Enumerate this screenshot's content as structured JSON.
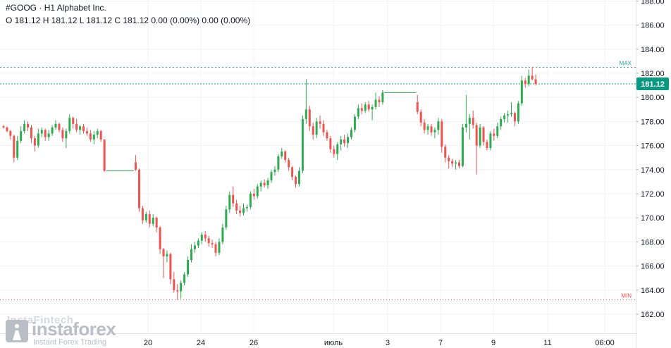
{
  "header": {
    "symbol": "#GOOG",
    "separator": "·",
    "timeframe": "H1",
    "company": "Alphabet Inc.",
    "ohlc_text": "O 181.12 H 181.12 L 181.12 C 181.12 0.00 (0.00%) 0.00 (0.00%)"
  },
  "watermark": {
    "faint_text": "InstaFintech",
    "brand": "instaforex",
    "tagline": "Instant Forex Trading"
  },
  "colors": {
    "up": "#26a69a",
    "up_candle": "#2eaa50",
    "down": "#ef5350",
    "max_line": "#26a69a",
    "min_line": "#ef5350",
    "price_line": "#089981",
    "grid": "#f0f3fa",
    "axis_text": "#131722"
  },
  "chart_data": {
    "type": "candlestick",
    "title": "#GOOG · H1 Alphabet Inc.",
    "y_axis": {
      "range": [
        161.0,
        188.5
      ],
      "ticks": [
        188.0,
        186.0,
        184.0,
        182.0,
        180.0,
        178.0,
        176.0,
        174.0,
        172.0,
        170.0,
        168.0,
        166.0,
        164.0,
        162.0
      ],
      "tick_labels": [
        "188.00",
        "186.00",
        "184.00",
        "182.00",
        "180.00",
        "178.00",
        "176.00",
        "174.00",
        "172.00",
        "170.00",
        "168.00",
        "166.00",
        "164.00",
        "162.00"
      ]
    },
    "x_axis": {
      "tick_labels": [
        "20",
        "24",
        "26",
        "июль",
        "3",
        "7",
        "9",
        "11",
        "06:00"
      ]
    },
    "current_price": 181.12,
    "current_price_label": "181.12",
    "max_level": 182.5,
    "max_label": "MAX",
    "min_level": 163.2,
    "min_label": "MIN",
    "grid": true,
    "candles": [
      [
        177.6,
        177.7,
        177.4,
        177.5
      ],
      [
        177.5,
        177.6,
        177.1,
        177.2
      ],
      [
        177.2,
        177.3,
        176.5,
        176.8
      ],
      [
        176.8,
        176.9,
        174.6,
        175.0
      ],
      [
        175.0,
        176.8,
        174.8,
        176.4
      ],
      [
        176.4,
        177.6,
        176.2,
        177.2
      ],
      [
        177.2,
        178.1,
        177.0,
        177.8
      ],
      [
        177.8,
        178.0,
        177.2,
        177.5
      ],
      [
        177.5,
        177.7,
        176.2,
        176.6
      ],
      [
        176.6,
        176.8,
        175.5,
        176.0
      ],
      [
        176.0,
        177.4,
        175.8,
        177.0
      ],
      [
        177.0,
        177.5,
        176.7,
        177.3
      ],
      [
        177.3,
        177.4,
        176.4,
        176.7
      ],
      [
        176.7,
        177.3,
        176.4,
        177.0
      ],
      [
        177.0,
        177.7,
        176.8,
        177.5
      ],
      [
        177.5,
        178.1,
        177.3,
        177.8
      ],
      [
        177.8,
        177.9,
        177.1,
        177.3
      ],
      [
        177.3,
        177.5,
        176.3,
        176.6
      ],
      [
        176.6,
        177.4,
        175.8,
        177.2
      ],
      [
        177.2,
        178.6,
        177.0,
        178.3
      ],
      [
        178.3,
        178.4,
        177.4,
        177.8
      ],
      [
        177.8,
        178.2,
        177.1,
        177.3
      ],
      [
        177.3,
        177.7,
        176.9,
        177.6
      ],
      [
        177.6,
        177.8,
        177.0,
        177.2
      ],
      [
        177.2,
        177.5,
        176.8,
        177.0
      ],
      [
        177.0,
        177.3,
        176.3,
        176.5
      ],
      [
        176.5,
        177.2,
        176.1,
        176.9
      ],
      [
        176.9,
        177.4,
        176.6,
        177.2
      ],
      [
        177.2,
        177.3,
        176.3,
        176.5
      ],
      [
        176.5,
        176.5,
        173.8,
        173.9
      ],
      [
        173.9,
        173.9,
        173.9,
        173.9
      ],
      [
        173.9,
        173.9,
        173.9,
        173.9
      ],
      [
        173.9,
        173.9,
        173.9,
        173.9
      ],
      [
        173.9,
        173.9,
        173.9,
        173.9
      ],
      [
        173.9,
        173.9,
        173.9,
        173.9
      ],
      [
        173.9,
        173.9,
        173.9,
        173.9
      ],
      [
        173.9,
        173.9,
        173.9,
        173.9
      ],
      [
        173.9,
        173.9,
        173.9,
        173.9
      ],
      [
        174.6,
        175.2,
        173.9,
        174.0
      ],
      [
        174.0,
        174.1,
        170.5,
        170.8
      ],
      [
        170.8,
        171.0,
        169.5,
        169.8
      ],
      [
        169.8,
        170.5,
        169.6,
        170.3
      ],
      [
        170.3,
        170.6,
        169.2,
        169.5
      ],
      [
        169.5,
        170.3,
        169.3,
        170.0
      ],
      [
        170.0,
        170.1,
        168.8,
        169.2
      ],
      [
        169.2,
        169.3,
        167.0,
        167.4
      ],
      [
        167.4,
        167.5,
        165.0,
        166.8
      ],
      [
        166.8,
        167.3,
        166.3,
        167.0
      ],
      [
        167.0,
        167.1,
        164.5,
        164.9
      ],
      [
        164.9,
        165.5,
        163.8,
        164.0
      ],
      [
        164.0,
        164.5,
        163.2,
        163.9
      ],
      [
        163.9,
        164.8,
        163.3,
        164.6
      ],
      [
        164.6,
        165.5,
        164.4,
        165.3
      ],
      [
        165.3,
        166.8,
        165.1,
        166.5
      ],
      [
        166.5,
        167.8,
        166.3,
        167.4
      ],
      [
        167.4,
        168.0,
        167.1,
        167.7
      ],
      [
        167.7,
        168.3,
        167.5,
        168.1
      ],
      [
        168.1,
        168.8,
        167.8,
        168.6
      ],
      [
        168.6,
        168.9,
        168.0,
        168.3
      ],
      [
        168.3,
        168.5,
        167.6,
        167.9
      ],
      [
        167.9,
        168.2,
        167.5,
        167.8
      ],
      [
        167.8,
        168.0,
        166.8,
        167.1
      ],
      [
        167.1,
        168.3,
        166.9,
        168.0
      ],
      [
        168.0,
        169.5,
        167.8,
        169.2
      ],
      [
        169.2,
        171.0,
        169.0,
        170.7
      ],
      [
        170.7,
        172.2,
        170.4,
        171.9
      ],
      [
        171.9,
        172.6,
        170.9,
        171.2
      ],
      [
        171.2,
        171.5,
        170.3,
        170.6
      ],
      [
        170.6,
        171.0,
        170.1,
        170.4
      ],
      [
        170.4,
        171.2,
        170.2,
        170.8
      ],
      [
        170.8,
        171.1,
        170.5,
        170.9
      ],
      [
        170.9,
        172.2,
        170.7,
        172.0
      ],
      [
        172.0,
        172.4,
        171.5,
        171.8
      ],
      [
        171.8,
        172.8,
        171.6,
        172.6
      ],
      [
        172.6,
        173.1,
        172.2,
        172.9
      ],
      [
        172.9,
        173.2,
        172.5,
        172.7
      ],
      [
        172.7,
        173.3,
        172.4,
        173.1
      ],
      [
        173.1,
        174.0,
        172.9,
        173.8
      ],
      [
        173.8,
        174.3,
        173.5,
        174.0
      ],
      [
        174.0,
        175.3,
        173.8,
        175.1
      ],
      [
        175.1,
        175.8,
        174.9,
        175.5
      ],
      [
        175.5,
        175.6,
        174.6,
        174.8
      ],
      [
        174.8,
        175.0,
        173.9,
        174.2
      ],
      [
        174.2,
        174.3,
        173.1,
        173.4
      ],
      [
        173.4,
        173.5,
        172.5,
        172.8
      ],
      [
        172.8,
        174.2,
        172.6,
        173.9
      ],
      [
        173.9,
        178.5,
        173.7,
        178.2
      ],
      [
        178.2,
        181.5,
        177.8,
        179.0
      ],
      [
        179.0,
        179.3,
        177.2,
        177.6
      ],
      [
        177.6,
        177.9,
        176.5,
        176.9
      ],
      [
        176.9,
        178.3,
        176.6,
        178.0
      ],
      [
        178.0,
        178.5,
        177.4,
        177.8
      ],
      [
        177.8,
        178.1,
        176.8,
        177.1
      ],
      [
        177.1,
        177.3,
        176.4,
        176.6
      ],
      [
        176.6,
        176.8,
        175.4,
        175.7
      ],
      [
        175.7,
        176.0,
        175.0,
        175.3
      ],
      [
        175.3,
        176.3,
        174.8,
        176.1
      ],
      [
        176.1,
        176.8,
        175.6,
        176.5
      ],
      [
        176.5,
        176.9,
        175.9,
        176.2
      ],
      [
        176.2,
        177.0,
        175.8,
        176.7
      ],
      [
        176.7,
        177.5,
        176.5,
        177.3
      ],
      [
        177.3,
        178.6,
        177.1,
        178.4
      ],
      [
        178.4,
        179.4,
        178.2,
        179.1
      ],
      [
        179.1,
        179.5,
        178.6,
        178.9
      ],
      [
        178.9,
        179.6,
        178.7,
        179.4
      ],
      [
        179.4,
        179.7,
        178.8,
        179.0
      ],
      [
        179.0,
        179.4,
        178.1,
        179.2
      ],
      [
        179.2,
        180.4,
        179.0,
        179.8
      ],
      [
        179.8,
        180.1,
        179.2,
        179.6
      ],
      [
        179.6,
        180.6,
        179.4,
        180.4
      ],
      [
        180.4,
        180.4,
        180.3,
        180.4
      ],
      [
        180.4,
        180.4,
        180.3,
        180.4
      ],
      [
        180.4,
        180.4,
        180.3,
        180.4
      ],
      [
        180.4,
        180.4,
        180.3,
        180.4
      ],
      [
        180.4,
        180.4,
        180.3,
        180.4
      ],
      [
        180.4,
        180.4,
        180.3,
        180.4
      ],
      [
        180.4,
        180.4,
        180.3,
        180.4
      ],
      [
        180.4,
        180.4,
        180.3,
        180.4
      ],
      [
        180.4,
        180.4,
        180.3,
        180.4
      ],
      [
        179.6,
        180.2,
        178.6,
        178.8
      ],
      [
        178.8,
        179.0,
        177.6,
        177.9
      ],
      [
        177.9,
        178.2,
        177.0,
        177.3
      ],
      [
        177.3,
        177.8,
        176.9,
        177.6
      ],
      [
        177.6,
        177.8,
        176.8,
        177.1
      ],
      [
        177.1,
        177.5,
        176.6,
        177.3
      ],
      [
        177.3,
        178.3,
        176.9,
        178.0
      ],
      [
        178.0,
        178.2,
        175.4,
        175.9
      ],
      [
        175.9,
        176.1,
        174.6,
        175.0
      ],
      [
        175.0,
        175.2,
        174.1,
        174.7
      ],
      [
        174.7,
        174.9,
        174.2,
        174.5
      ],
      [
        174.5,
        174.8,
        174.0,
        174.6
      ],
      [
        174.6,
        174.8,
        174.1,
        174.3
      ],
      [
        174.3,
        177.8,
        174.2,
        177.5
      ],
      [
        177.5,
        180.2,
        177.1,
        177.8
      ],
      [
        177.8,
        178.6,
        176.5,
        178.3
      ],
      [
        178.3,
        178.9,
        177.4,
        177.7
      ],
      [
        177.7,
        177.9,
        173.6,
        176.0
      ],
      [
        176.0,
        177.8,
        175.8,
        177.5
      ],
      [
        177.5,
        177.6,
        176.0,
        176.3
      ],
      [
        176.3,
        176.5,
        175.6,
        175.8
      ],
      [
        175.8,
        177.2,
        175.6,
        177.0
      ],
      [
        177.0,
        177.4,
        176.4,
        176.8
      ],
      [
        176.8,
        177.9,
        176.6,
        177.6
      ],
      [
        177.6,
        178.4,
        177.3,
        178.2
      ],
      [
        178.2,
        178.7,
        177.9,
        178.5
      ],
      [
        178.5,
        178.9,
        177.9,
        178.6
      ],
      [
        178.6,
        179.6,
        178.4,
        178.7
      ],
      [
        178.7,
        178.8,
        177.6,
        178.0
      ],
      [
        178.0,
        179.7,
        177.8,
        179.5
      ],
      [
        179.5,
        181.8,
        179.3,
        181.4
      ],
      [
        181.4,
        181.6,
        180.8,
        181.1
      ],
      [
        181.1,
        182.3,
        180.9,
        181.8
      ],
      [
        181.8,
        182.5,
        181.4,
        181.5
      ],
      [
        181.5,
        181.9,
        181.0,
        181.12
      ]
    ]
  }
}
